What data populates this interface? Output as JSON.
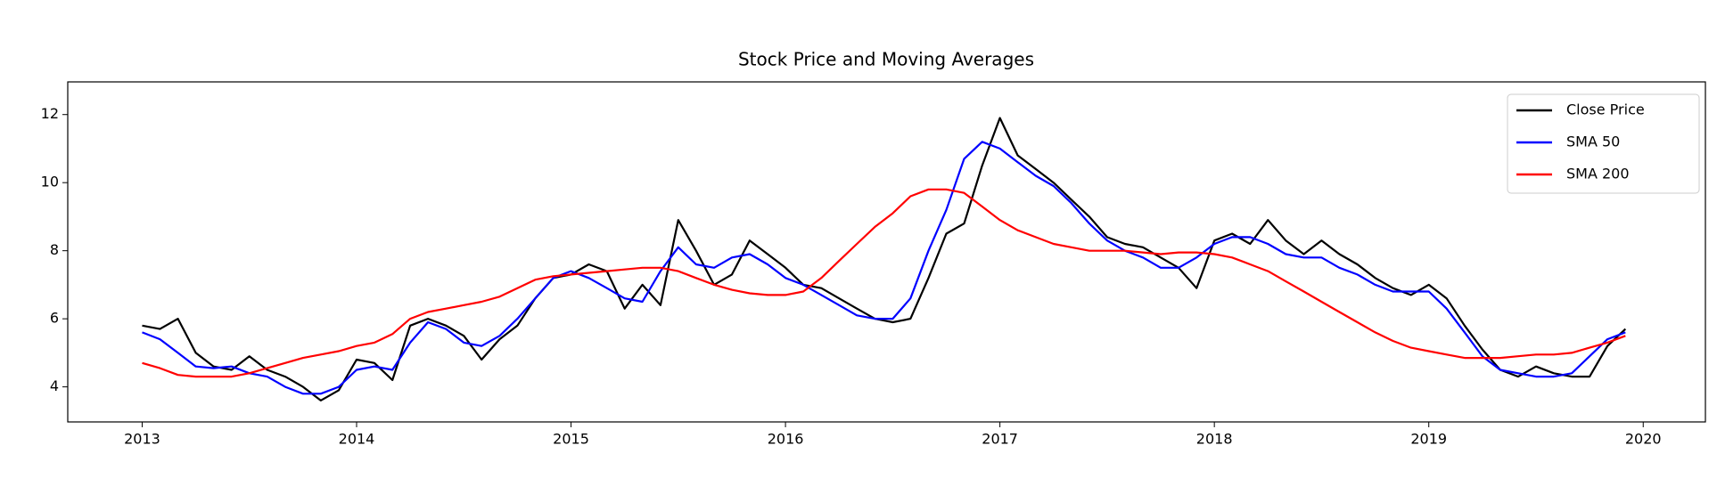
{
  "chart_data": {
    "type": "line",
    "title": "Stock Price and Moving Averages",
    "x": [
      2013.0,
      2013.083,
      2013.167,
      2013.25,
      2013.333,
      2013.417,
      2013.5,
      2013.583,
      2013.667,
      2013.75,
      2013.833,
      2013.917,
      2014.0,
      2014.083,
      2014.167,
      2014.25,
      2014.333,
      2014.417,
      2014.5,
      2014.583,
      2014.667,
      2014.75,
      2014.833,
      2014.917,
      2015.0,
      2015.083,
      2015.167,
      2015.25,
      2015.333,
      2015.417,
      2015.5,
      2015.583,
      2015.667,
      2015.75,
      2015.833,
      2015.917,
      2016.0,
      2016.083,
      2016.167,
      2016.25,
      2016.333,
      2016.417,
      2016.5,
      2016.583,
      2016.667,
      2016.75,
      2016.833,
      2016.917,
      2017.0,
      2017.083,
      2017.167,
      2017.25,
      2017.333,
      2017.417,
      2017.5,
      2017.583,
      2017.667,
      2017.75,
      2017.833,
      2017.917,
      2018.0,
      2018.083,
      2018.167,
      2018.25,
      2018.333,
      2018.417,
      2018.5,
      2018.583,
      2018.667,
      2018.75,
      2018.833,
      2018.917,
      2019.0,
      2019.083,
      2019.167,
      2019.25,
      2019.333,
      2019.417,
      2019.5,
      2019.583,
      2019.667,
      2019.75,
      2019.833,
      2019.917
    ],
    "series": [
      {
        "name": "Close Price",
        "color": "#000000",
        "values": [
          5.8,
          5.7,
          6.0,
          5.0,
          4.6,
          4.5,
          4.9,
          4.5,
          4.3,
          4.0,
          3.6,
          3.9,
          4.8,
          4.7,
          4.2,
          5.8,
          6.0,
          5.8,
          5.5,
          4.8,
          5.4,
          5.8,
          6.6,
          7.2,
          7.3,
          7.6,
          7.4,
          6.3,
          7.0,
          6.4,
          8.9,
          8.0,
          7.0,
          7.3,
          8.3,
          7.9,
          7.5,
          7.0,
          6.9,
          6.6,
          6.3,
          6.0,
          5.9,
          6.0,
          7.2,
          8.5,
          8.8,
          10.5,
          11.9,
          10.8,
          10.4,
          10.0,
          9.5,
          9.0,
          8.4,
          8.2,
          8.1,
          7.8,
          7.5,
          6.9,
          8.3,
          8.5,
          8.2,
          8.9,
          8.3,
          7.9,
          8.3,
          7.9,
          7.6,
          7.2,
          6.9,
          6.7,
          7.0,
          6.6,
          5.8,
          5.1,
          4.5,
          4.3,
          4.6,
          4.4,
          4.3,
          4.3,
          5.2,
          5.7
        ]
      },
      {
        "name": "SMA 50",
        "color": "#0000ff",
        "values": [
          5.6,
          5.4,
          5.0,
          4.6,
          4.55,
          4.6,
          4.4,
          4.3,
          4.0,
          3.8,
          3.8,
          4.0,
          4.5,
          4.6,
          4.5,
          5.3,
          5.9,
          5.7,
          5.3,
          5.2,
          5.5,
          6.0,
          6.6,
          7.2,
          7.4,
          7.2,
          6.9,
          6.6,
          6.5,
          7.4,
          8.1,
          7.6,
          7.5,
          7.8,
          7.9,
          7.6,
          7.2,
          7.0,
          6.7,
          6.4,
          6.1,
          6.0,
          6.0,
          6.6,
          8.0,
          9.2,
          10.7,
          11.2,
          11.0,
          10.6,
          10.2,
          9.9,
          9.4,
          8.8,
          8.3,
          8.0,
          7.8,
          7.5,
          7.5,
          7.8,
          8.2,
          8.4,
          8.4,
          8.2,
          7.9,
          7.8,
          7.8,
          7.5,
          7.3,
          7.0,
          6.8,
          6.8,
          6.8,
          6.3,
          5.6,
          4.9,
          4.5,
          4.4,
          4.3,
          4.3,
          4.4,
          4.9,
          5.4,
          5.6
        ]
      },
      {
        "name": "SMA 200",
        "color": "#ff0000",
        "values": [
          4.7,
          4.55,
          4.35,
          4.3,
          4.3,
          4.3,
          4.4,
          4.55,
          4.7,
          4.85,
          4.95,
          5.05,
          5.2,
          5.3,
          5.55,
          6.0,
          6.2,
          6.3,
          6.4,
          6.5,
          6.65,
          6.9,
          7.15,
          7.25,
          7.3,
          7.35,
          7.4,
          7.45,
          7.5,
          7.5,
          7.4,
          7.2,
          7.0,
          6.85,
          6.75,
          6.7,
          6.7,
          6.8,
          7.2,
          7.7,
          8.2,
          8.7,
          9.1,
          9.6,
          9.8,
          9.8,
          9.7,
          9.3,
          8.9,
          8.6,
          8.4,
          8.2,
          8.1,
          8.0,
          8.0,
          8.0,
          7.95,
          7.9,
          7.95,
          7.95,
          7.9,
          7.8,
          7.6,
          7.4,
          7.1,
          6.8,
          6.5,
          6.2,
          5.9,
          5.6,
          5.35,
          5.15,
          5.05,
          4.95,
          4.85,
          4.85,
          4.85,
          4.9,
          4.95,
          4.95,
          5.0,
          5.15,
          5.3,
          5.5
        ]
      }
    ],
    "xlim": [
      2012.653,
      2020.29
    ],
    "xticks": [
      2013,
      2014,
      2015,
      2016,
      2017,
      2018,
      2019,
      2020
    ],
    "ylim": [
      2.97,
      12.96
    ],
    "yticks": [
      4,
      6,
      8,
      10,
      12
    ],
    "grid": false,
    "legend": "upper right"
  }
}
